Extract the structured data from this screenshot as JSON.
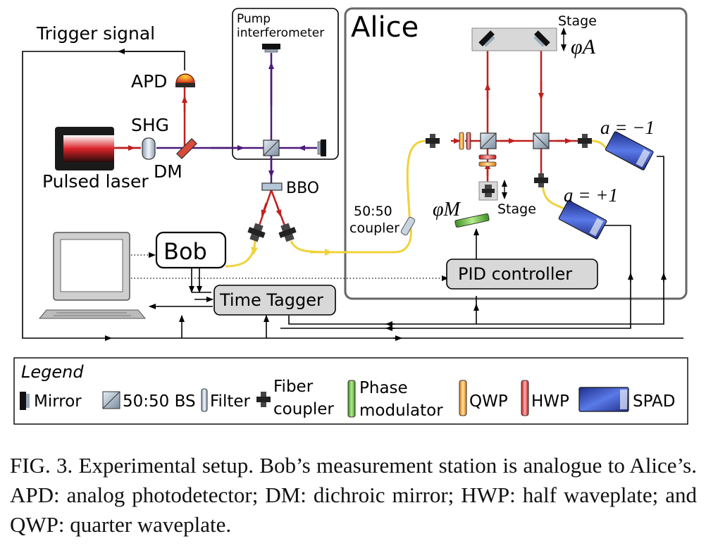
{
  "diagram": {
    "labels": {
      "trigger_signal": "Trigger signal",
      "apd": "APD",
      "shg": "SHG",
      "dm": "DM",
      "pulsed_laser": "Pulsed laser",
      "pump_interferometer_line1": "Pump",
      "pump_interferometer_line2": "interferometer",
      "alice": "Alice",
      "stage_a": "Stage",
      "phi_a": "φA",
      "a_minus": "a = −1",
      "a_plus": "a = +1",
      "bbo": "BBO",
      "coupler_line1": "50:50",
      "coupler_line2": "coupler",
      "phi_m": "φM",
      "stage_m": "Stage",
      "bob": "Bob",
      "pid_controller": "PID controller",
      "time_tagger": "Time Tagger"
    },
    "legend": {
      "title": "Legend",
      "items": {
        "mirror": "Mirror",
        "bs": "50:50 BS",
        "filter": "Filter",
        "fiber_line1": "Fiber",
        "fiber_line2": "coupler",
        "phase_line1": "Phase",
        "phase_line2": "modulator",
        "qwp": "QWP",
        "hwp": "HWP",
        "spad": "SPAD"
      }
    },
    "colors": {
      "pump_beam": "#4b1a7a",
      "photon_beam": "#c0201e",
      "fiber": "#f0d23a",
      "box_fill": "#d8d8d8",
      "spad_blue": "#3556c8",
      "phase_green": "#7cc843"
    }
  },
  "caption": "FIG. 3.  Experimental setup. Bob’s measurement station is analogue to Alice’s. APD: analog photodetector; DM: dichroic mirror; HWP: half waveplate; and QWP: quarter waveplate."
}
